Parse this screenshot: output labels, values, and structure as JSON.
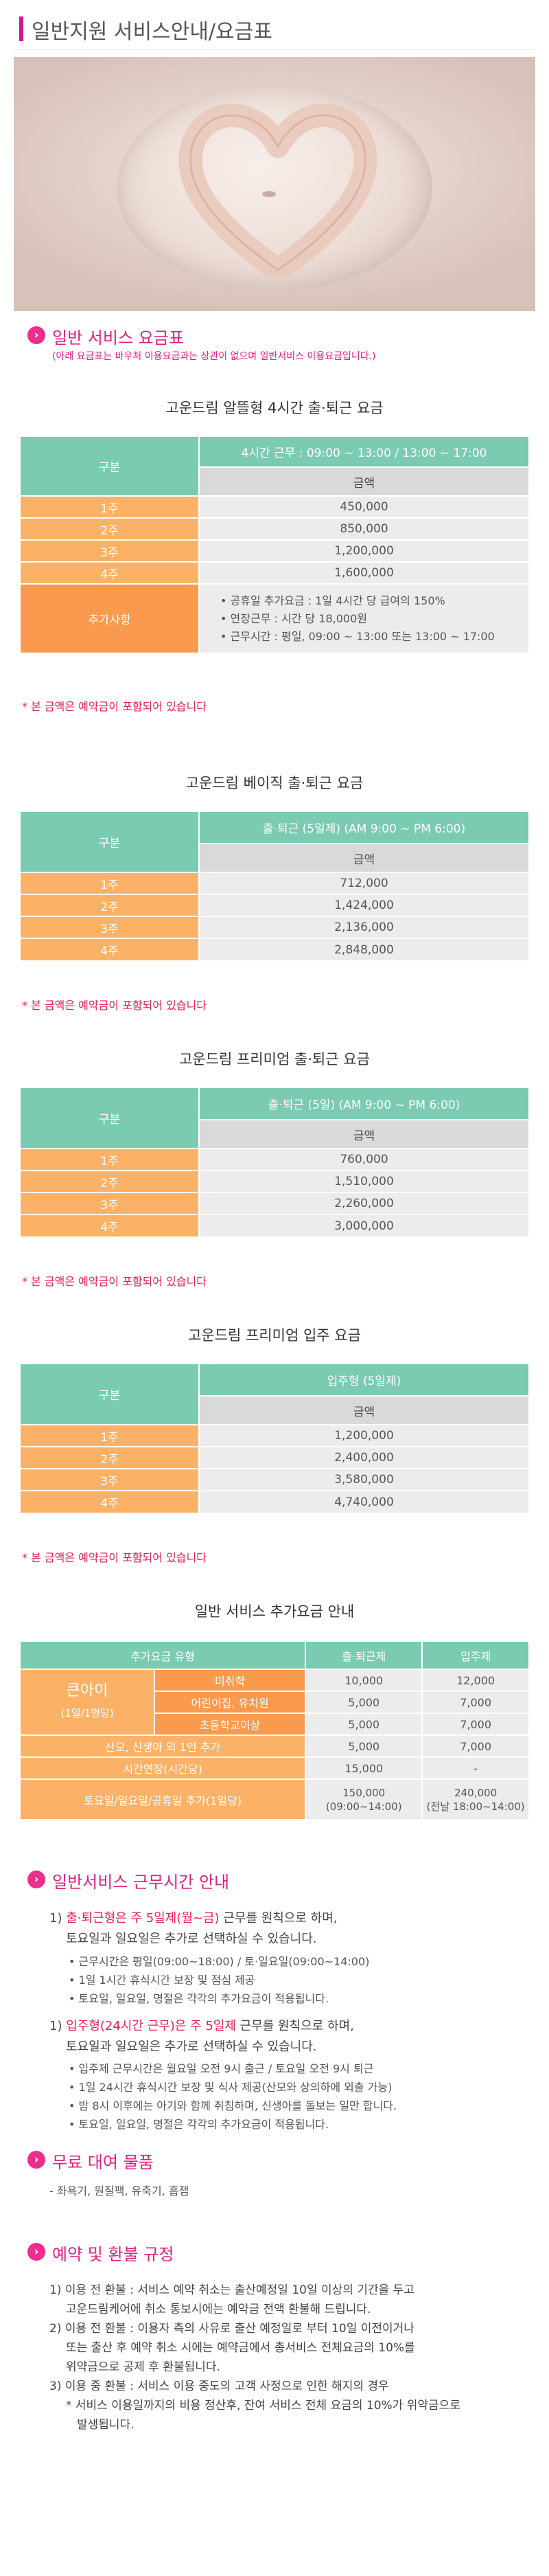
{
  "page_title": "일반지원 서비스안내/요금표",
  "colors": {
    "pink": "#e0207f",
    "green": "#7bcbb2",
    "orange": "#fbb267",
    "gray": "#d9d9d9"
  },
  "rates_section": {
    "heading": "일반 서비스 요금표",
    "subheading": "(아래 요금표는 바우처 이용요금과는 상관이 없으며 일반서비스 이용요금입니다.)"
  },
  "table1": {
    "title": "고운드림 알뜰형 4시간 출·퇴근 요금",
    "col_label": "구분",
    "header": "4시간 근무 : 09:00 ~ 13:00 / 13:00 ~ 17:00",
    "amount_label": "금액",
    "rows": [
      {
        "week": "1주",
        "amount": "450,000"
      },
      {
        "week": "2주",
        "amount": "850,000"
      },
      {
        "week": "3주",
        "amount": "1,200,000"
      },
      {
        "week": "4주",
        "amount": "1,600,000"
      }
    ],
    "extra_label": "추가사항",
    "extra_items": [
      "공휴일 추가요금 : 1일 4시간 당 급여의 150%",
      "연장근무 : 시간 당 18,000원",
      "근무시간 : 평일, 09:00 ~ 13:00 또는 13:00 ~ 17:00"
    ],
    "note": "* 본 금액은 예약금이 포함되어 있습니다"
  },
  "table2": {
    "title": "고운드림 베이직 출·퇴근 요금",
    "col_label": "구분",
    "header": "출·퇴근 (5일제) (AM 9:00 ~ PM 6:00)",
    "amount_label": "금액",
    "rows": [
      {
        "week": "1주",
        "amount": "712,000"
      },
      {
        "week": "2주",
        "amount": "1,424,000"
      },
      {
        "week": "3주",
        "amount": "2,136,000"
      },
      {
        "week": "4주",
        "amount": "2,848,000"
      }
    ],
    "note": "* 본 금액은 예약금이 포함되어 있습니다"
  },
  "table3": {
    "title": "고운드림 프리미엄 출·퇴근 요금",
    "col_label": "구분",
    "header": "출·퇴근 (5일) (AM 9:00 ~ PM 6:00)",
    "amount_label": "금액",
    "rows": [
      {
        "week": "1주",
        "amount": "760,000"
      },
      {
        "week": "2주",
        "amount": "1,510,000"
      },
      {
        "week": "3주",
        "amount": "2,260,000"
      },
      {
        "week": "4주",
        "amount": "3,000,000"
      }
    ],
    "note": "* 본 금액은 예약금이 포함되어 있습니다"
  },
  "table4": {
    "title": "고운드림 프리미엄 입주 요금",
    "col_label": "구분",
    "header": "입주형 (5일제)",
    "amount_label": "금액",
    "rows": [
      {
        "week": "1주",
        "amount": "1,200,000"
      },
      {
        "week": "2주",
        "amount": "2,400,000"
      },
      {
        "week": "3주",
        "amount": "3,580,000"
      },
      {
        "week": "4주",
        "amount": "4,740,000"
      }
    ],
    "note": "* 본 금액은 예약금이 포함되어 있습니다"
  },
  "table5": {
    "title": "일반 서비스 추가요금 안내",
    "h_type": "추가요금 유형",
    "h_commute": "출·퇴근제",
    "h_live": "입주제",
    "group_label": "큰아이",
    "group_sub": "(1일/1명당)",
    "rows": [
      {
        "type": "미취학",
        "commute": "10,000",
        "live": "12,000"
      },
      {
        "type": "어린이집, 유치원",
        "commute": "5,000",
        "live": "7,000"
      },
      {
        "type": "초등학교이상",
        "commute": "5,000",
        "live": "7,000"
      }
    ],
    "row_twins": {
      "type": "산모, 신생아 외 1인 추가",
      "commute": "5,000",
      "live": "7,000"
    },
    "row_overtime": {
      "type": "시간연장(시간당)",
      "commute": "15,000",
      "live": "-"
    },
    "row_holiday": {
      "type": "토요일/일요일/공휴일 추가(1일당)",
      "commute": "150,000",
      "commute_sub": "(09:00~14:00)",
      "live": "240,000",
      "live_sub": "(전날 18:00~14:00)"
    }
  },
  "hours_section": {
    "heading": "일반서비스 근무시간 안내",
    "p1_line1_a": "1) ",
    "p1_line1_pink": "출·퇴근형은 주 5일제(월~금)",
    "p1_line1_b": " 근무를 원칙으로 하며,",
    "p1_line2": "토요일과 일요일은 추가로 선택하실 수 있습니다.",
    "p1_items": [
      "근무시간은 평일(09:00~18:00) / 토·일요일(09:00~14:00)",
      "1일 1시간 휴식시간 보장 및 점심 제공",
      "토요일, 일요일, 명절은 각각의 추가요금이 적용됩니다."
    ],
    "p2_line1_a": "1) ",
    "p2_line1_pink": "입주형(24시간 근무)은 주 5일제",
    "p2_line1_b": " 근무를 원칙으로 하며,",
    "p2_line2": "토요일과 일요일은 추가로 선택하실 수 있습니다.",
    "p2_items": [
      "입주제 근무시간은 월요일 오전 9시 출근 / 토요일 오전 9시 퇴근",
      "1일 24시간 휴식시간 보장 및 식사 제공(산모와 상의하에 외출 가능)",
      "밤 8시 이후에는 아기와 함께 취침하며, 신생아를 돌보는 일만 합니다.",
      "토요일, 일요일, 명절은 각각의 추가요금이 적용됩니다."
    ]
  },
  "rental_section": {
    "heading": "무료 대여 물품",
    "items": "- 좌욕기, 원질팩, 유축기, 흡잼"
  },
  "refund_section": {
    "heading": "예약 및 환불 규정",
    "p1_line1": "1) 이용 전 환불 : 서비스 예약 취소는 출산예정일 10일 이상의 기간을 두고",
    "p1_line2": "고운드림케어에 취소 통보시에는 예약금 전액 환불해 드립니다.",
    "p2_line1": "2) 이용 전 환불 : 이용자 측의 사유로 출산 예정일로 부터 10일 이전이거나",
    "p2_line2": "또는 출산 후 예약 취소 시에는 예약금에서 총서비스 전체요금의 10%를",
    "p2_line3": "위약금으로 공제 후 환불됩니다.",
    "p3_line1": "3) 이용 중 환불 : 서비스 이용 중도의 고객 사정으로 인한 해지의 경우",
    "p3_line2": "* 서비스 이용일까지의 비용 정산후, 잔여 서비스 전체 요금의 10%가 위약금으로",
    "p3_line3": "발생됩니다."
  }
}
